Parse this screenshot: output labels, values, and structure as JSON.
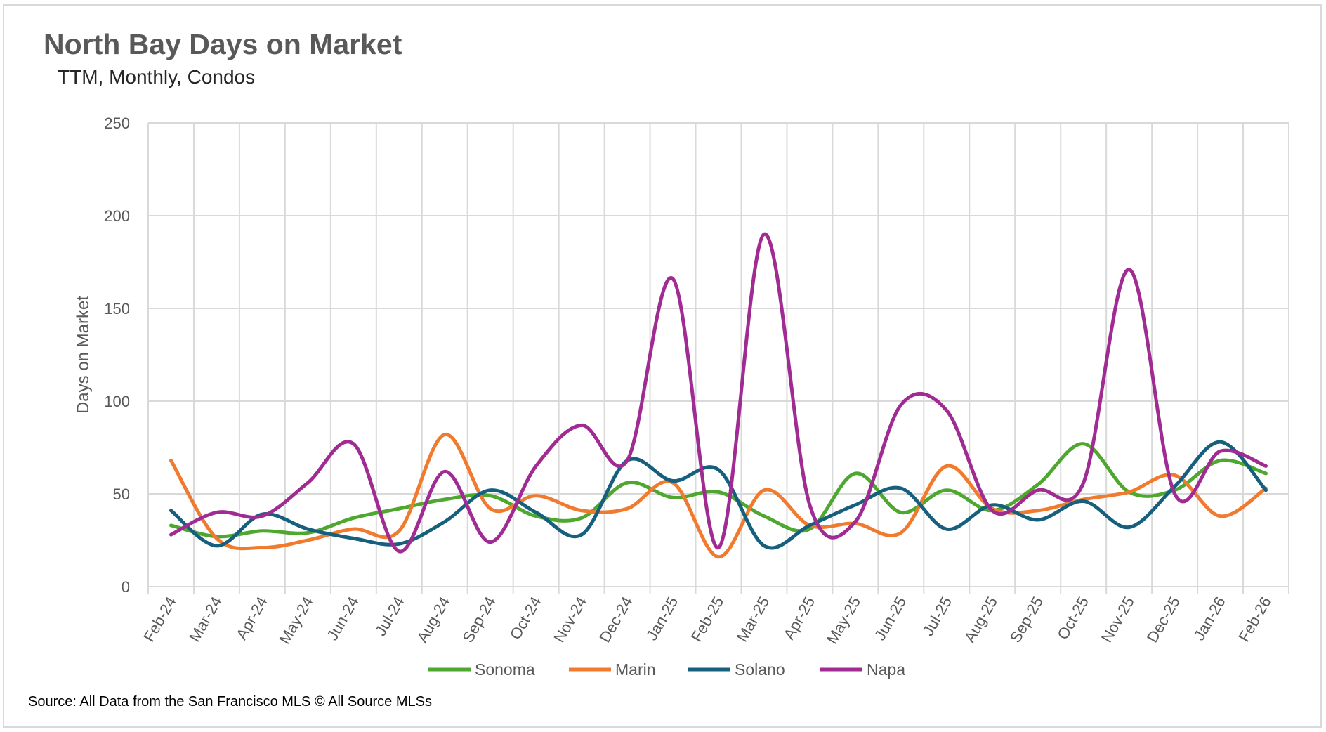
{
  "chart_data": {
    "type": "line",
    "title": "North Bay Days on Market",
    "subtitle": "TTM, Monthly, Condos",
    "xlabel": "",
    "ylabel": "Days on Market",
    "ylim": [
      0,
      250
    ],
    "yticks": [
      0,
      50,
      100,
      150,
      200,
      250
    ],
    "grid": true,
    "legend": "bottom",
    "categories": [
      "Feb-24",
      "Mar-24",
      "Apr-24",
      "May-24",
      "Jun-24",
      "Jul-24",
      "Aug-24",
      "Sep-24",
      "Oct-24",
      "Nov-24",
      "Dec-24",
      "Jan-25",
      "Feb-25",
      "Mar-25",
      "Apr-25",
      "May-25",
      "Jun-25",
      "Jul-25",
      "Aug-25",
      "Sep-25",
      "Oct-25",
      "Nov-25",
      "Dec-25",
      "Jan-26",
      "Feb-26"
    ],
    "series": [
      {
        "name": "Sonoma",
        "color": "#4ea72e",
        "values": [
          33,
          27,
          30,
          29,
          37,
          42,
          47,
          49,
          38,
          37,
          56,
          48,
          51,
          38,
          31,
          61,
          40,
          52,
          41,
          55,
          77,
          51,
          52,
          68,
          61
        ]
      },
      {
        "name": "Marin",
        "color": "#f07b2f",
        "values": [
          68,
          26,
          21,
          25,
          31,
          30,
          82,
          42,
          49,
          41,
          42,
          56,
          16,
          52,
          33,
          34,
          29,
          65,
          42,
          41,
          47,
          51,
          60,
          38,
          53
        ]
      },
      {
        "name": "Solano",
        "color": "#17607d",
        "values": [
          41,
          22,
          39,
          31,
          26,
          23,
          35,
          52,
          40,
          28,
          68,
          57,
          63,
          22,
          33,
          44,
          53,
          31,
          44,
          36,
          46,
          32,
          54,
          78,
          52
        ]
      },
      {
        "name": "Napa",
        "color": "#a02b93",
        "values": [
          28,
          40,
          38,
          56,
          77,
          19,
          62,
          24,
          65,
          87,
          68,
          166,
          21,
          190,
          44,
          35,
          98,
          95,
          41,
          52,
          56,
          171,
          50,
          73,
          65
        ]
      }
    ],
    "source": "Source: All Data from the San Francisco MLS © All Source MLSs"
  }
}
